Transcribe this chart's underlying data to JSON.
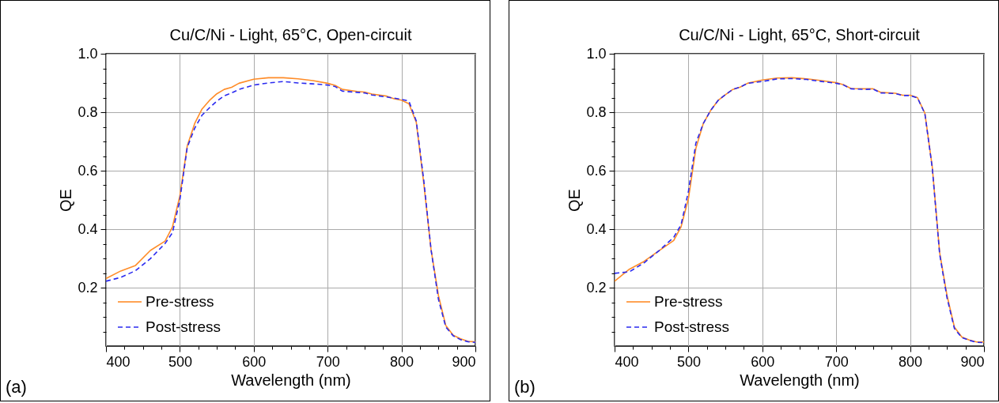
{
  "chart_data": [
    {
      "type": "line",
      "title": "Cu/C/Ni - Light, 65°C, Open-circuit",
      "xlabel": "Wavelength (nm)",
      "ylabel": "QE",
      "annotations": [
        "(a)"
      ],
      "x": [
        400,
        420,
        440,
        460,
        480,
        490,
        500,
        510,
        520,
        530,
        540,
        550,
        560,
        570,
        580,
        600,
        620,
        640,
        660,
        680,
        700,
        710,
        720,
        740,
        750,
        760,
        780,
        790,
        800,
        810,
        820,
        830,
        840,
        850,
        860,
        870,
        880,
        890,
        900
      ],
      "series": [
        {
          "name": "Pre-stress",
          "color": "#ff8c28",
          "line_style": "solid",
          "values": [
            0.231,
            0.257,
            0.276,
            0.327,
            0.359,
            0.408,
            0.514,
            0.685,
            0.761,
            0.811,
            0.84,
            0.863,
            0.878,
            0.885,
            0.899,
            0.913,
            0.918,
            0.918,
            0.914,
            0.908,
            0.899,
            0.892,
            0.878,
            0.871,
            0.869,
            0.862,
            0.855,
            0.846,
            0.841,
            0.829,
            0.766,
            0.56,
            0.33,
            0.173,
            0.07,
            0.037,
            0.025,
            0.016,
            0.015
          ]
        },
        {
          "name": "Post-stress",
          "color": "#2a2af0",
          "line_style": "dashed",
          "values": [
            0.222,
            0.235,
            0.258,
            0.299,
            0.351,
            0.388,
            0.5,
            0.68,
            0.745,
            0.79,
            0.815,
            0.838,
            0.856,
            0.866,
            0.878,
            0.893,
            0.9,
            0.905,
            0.9,
            0.897,
            0.893,
            0.888,
            0.872,
            0.868,
            0.866,
            0.859,
            0.852,
            0.848,
            0.844,
            0.838,
            0.77,
            0.57,
            0.33,
            0.16,
            0.065,
            0.035,
            0.022,
            0.015,
            0.013
          ]
        }
      ],
      "xlim": [
        400,
        900
      ],
      "ylim": [
        0,
        1
      ],
      "xticks": [
        400,
        {
          "value": 425,
          "label": null
        },
        {
          "value": 450,
          "label": null
        },
        {
          "value": 475,
          "label": null
        },
        500,
        {
          "value": 525,
          "label": null
        },
        {
          "value": 550,
          "label": null
        },
        {
          "value": 575,
          "label": null
        },
        600,
        {
          "value": 625,
          "label": null
        },
        {
          "value": 650,
          "label": null
        },
        {
          "value": 675,
          "label": null
        },
        700,
        {
          "value": 725,
          "label": null
        },
        {
          "value": 750,
          "label": null
        },
        {
          "value": 775,
          "label": null
        },
        800,
        {
          "value": 825,
          "label": null
        },
        {
          "value": 850,
          "label": null
        },
        {
          "value": 875,
          "label": null
        },
        900
      ],
      "yticks": [
        {
          "value": 0.05,
          "label": null
        },
        {
          "value": 0.1,
          "label": null
        },
        {
          "value": 0.15,
          "label": null
        },
        0.2,
        {
          "value": 0.25,
          "label": null
        },
        {
          "value": 0.3,
          "label": null
        },
        {
          "value": 0.35,
          "label": null
        },
        0.4,
        {
          "value": 0.45,
          "label": null
        },
        {
          "value": 0.5,
          "label": null
        },
        {
          "value": 0.55,
          "label": null
        },
        0.6,
        {
          "value": 0.65,
          "label": null
        },
        {
          "value": 0.7,
          "label": null
        },
        {
          "value": 0.75,
          "label": null
        },
        0.8,
        {
          "value": 0.85,
          "label": null
        },
        {
          "value": 0.9,
          "label": null
        },
        {
          "value": 0.95,
          "label": null
        },
        {
          "value": 1,
          "label": "1.0"
        }
      ],
      "grid": true,
      "legend": "bottom left",
      "marker": "none"
    },
    {
      "type": "line",
      "title": "Cu/C/Ni - Light, 65°C, Short-circuit",
      "xlabel": "Wavelength (nm)",
      "ylabel": "QE",
      "annotations": [
        "(b)"
      ],
      "x": [
        400,
        420,
        440,
        460,
        480,
        490,
        500,
        510,
        520,
        530,
        540,
        550,
        560,
        570,
        580,
        600,
        620,
        640,
        660,
        680,
        700,
        710,
        720,
        740,
        750,
        760,
        780,
        790,
        800,
        810,
        820,
        830,
        840,
        850,
        860,
        870,
        880,
        890,
        900
      ],
      "series": [
        {
          "name": "Pre-stress",
          "color": "#ff8c28",
          "line_style": "solid",
          "values": [
            0.222,
            0.263,
            0.29,
            0.326,
            0.361,
            0.408,
            0.505,
            0.676,
            0.761,
            0.806,
            0.84,
            0.86,
            0.878,
            0.886,
            0.899,
            0.91,
            0.917,
            0.918,
            0.914,
            0.908,
            0.901,
            0.894,
            0.881,
            0.88,
            0.88,
            0.868,
            0.865,
            0.858,
            0.858,
            0.85,
            0.797,
            0.613,
            0.32,
            0.173,
            0.065,
            0.031,
            0.021,
            0.014,
            0.014
          ]
        },
        {
          "name": "Post-stress",
          "color": "#2a2af0",
          "line_style": "dashed",
          "values": [
            0.249,
            0.254,
            0.285,
            0.326,
            0.372,
            0.415,
            0.53,
            0.694,
            0.761,
            0.806,
            0.84,
            0.86,
            0.878,
            0.886,
            0.899,
            0.905,
            0.914,
            0.915,
            0.912,
            0.905,
            0.899,
            0.893,
            0.88,
            0.878,
            0.879,
            0.866,
            0.864,
            0.857,
            0.857,
            0.849,
            0.795,
            0.61,
            0.315,
            0.165,
            0.06,
            0.029,
            0.02,
            0.013,
            0.012
          ]
        }
      ],
      "xlim": [
        400,
        900
      ],
      "ylim": [
        0,
        1
      ],
      "xticks": [
        400,
        {
          "value": 425,
          "label": null
        },
        {
          "value": 450,
          "label": null
        },
        {
          "value": 475,
          "label": null
        },
        500,
        {
          "value": 525,
          "label": null
        },
        {
          "value": 550,
          "label": null
        },
        {
          "value": 575,
          "label": null
        },
        600,
        {
          "value": 625,
          "label": null
        },
        {
          "value": 650,
          "label": null
        },
        {
          "value": 675,
          "label": null
        },
        700,
        {
          "value": 725,
          "label": null
        },
        {
          "value": 750,
          "label": null
        },
        {
          "value": 775,
          "label": null
        },
        800,
        {
          "value": 825,
          "label": null
        },
        {
          "value": 850,
          "label": null
        },
        {
          "value": 875,
          "label": null
        },
        900
      ],
      "yticks": [
        {
          "value": 0.05,
          "label": null
        },
        {
          "value": 0.1,
          "label": null
        },
        {
          "value": 0.15,
          "label": null
        },
        0.2,
        {
          "value": 0.25,
          "label": null
        },
        {
          "value": 0.3,
          "label": null
        },
        {
          "value": 0.35,
          "label": null
        },
        0.4,
        {
          "value": 0.45,
          "label": null
        },
        {
          "value": 0.5,
          "label": null
        },
        {
          "value": 0.55,
          "label": null
        },
        0.6,
        {
          "value": 0.65,
          "label": null
        },
        {
          "value": 0.7,
          "label": null
        },
        {
          "value": 0.75,
          "label": null
        },
        0.8,
        {
          "value": 0.85,
          "label": null
        },
        {
          "value": 0.9,
          "label": null
        },
        {
          "value": 0.95,
          "label": null
        },
        {
          "value": 1,
          "label": "1.0"
        }
      ],
      "grid": true,
      "legend": "bottom left",
      "marker": "none"
    }
  ]
}
